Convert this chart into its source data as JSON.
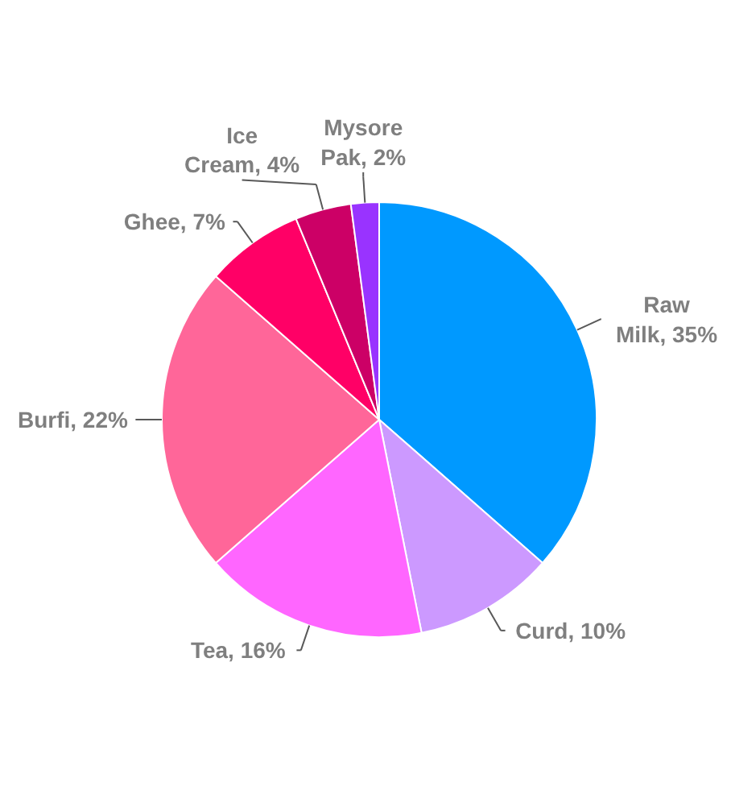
{
  "chart_data": {
    "type": "pie",
    "categories": [
      "Raw Milk",
      "Curd",
      "Tea",
      "Burfi",
      "Ghee",
      "Ice Cream",
      "Mysore Pak"
    ],
    "values": [
      35,
      10,
      16,
      22,
      7,
      4,
      2
    ],
    "value_labels": [
      "35%",
      "10%",
      "16%",
      "22%",
      "7%",
      "4%",
      "2%"
    ],
    "colors": [
      "#0099ff",
      "#cc99ff",
      "#ff66ff",
      "#ff6699",
      "#ff0066",
      "#cc0066",
      "#9933ff"
    ],
    "legend": false
  }
}
